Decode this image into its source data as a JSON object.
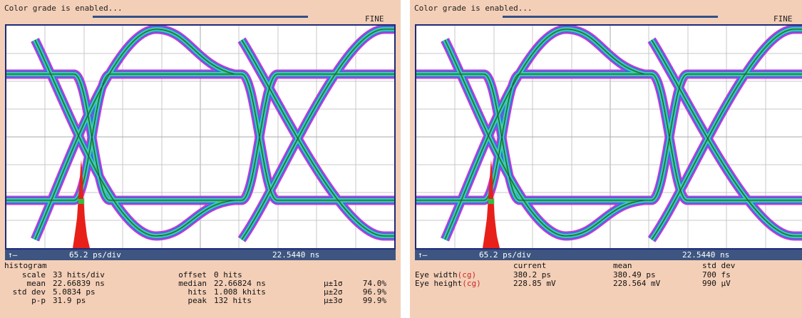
{
  "colors": {
    "panel_bg": "#f4cfb7",
    "statusbar_bg": "#3d5580",
    "hist_red": "#e8201a"
  },
  "left": {
    "header_message": "Color grade is enabled...",
    "mode": "FINE",
    "status": {
      "timebase": "65.2 ps/div",
      "position": "22.5440 ns"
    },
    "histogram": {
      "title": "histogram",
      "scale": {
        "label": "scale",
        "value": "33 hits/div"
      },
      "mean": {
        "label": "mean",
        "value": "22.66839 ns"
      },
      "std_dev": {
        "label": "std dev",
        "value": "5.0834 ps"
      },
      "p_p": {
        "label": "p-p",
        "value": "31.9 ps"
      },
      "offset": {
        "label": "offset",
        "value": "0 hits"
      },
      "median": {
        "label": "median",
        "value": "22.66824 ns"
      },
      "hits": {
        "label": "hits",
        "value": "1.008 khits"
      },
      "peak": {
        "label": "peak",
        "value": "132 hits"
      },
      "sigma1": {
        "label": "μ±1σ",
        "value": "74.0%"
      },
      "sigma2": {
        "label": "μ±2σ",
        "value": "96.9%"
      },
      "sigma3": {
        "label": "μ±3σ",
        "value": "99.9%"
      }
    }
  },
  "right": {
    "header_message": "Color grade is enabled...",
    "mode": "FINE",
    "status": {
      "timebase": "65.2 ps/div",
      "position": "22.5440 ns"
    },
    "table": {
      "headers": {
        "current": "current",
        "mean": "mean",
        "std_dev": "std dev"
      },
      "rows": [
        {
          "label": "Eye width",
          "tag": "(cg)",
          "current": "380.2 ps",
          "mean": "380.49 ps",
          "std_dev": "700 fs"
        },
        {
          "label": "Eye height",
          "tag": "(cg)",
          "current": "228.85 mV",
          "mean": "228.564 mV",
          "std_dev": "990 μV"
        }
      ]
    }
  }
}
